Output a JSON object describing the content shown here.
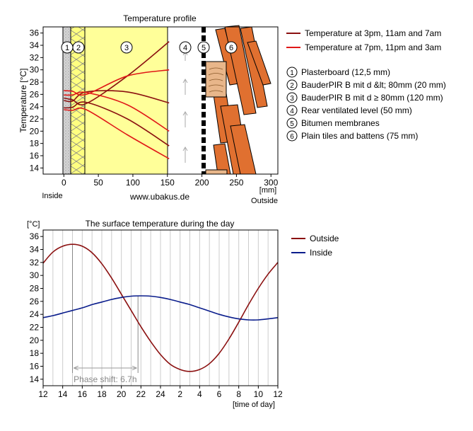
{
  "chart_data": [
    {
      "type": "line",
      "title": "Temperature profile",
      "ylabel": "Temperature [°C]",
      "xlabel": "[mm]",
      "ylim": [
        13,
        37
      ],
      "xlim": [
        -30,
        310
      ],
      "x_ticks": [
        0,
        50,
        100,
        150,
        200,
        250,
        300
      ],
      "y_ticks": [
        14,
        16,
        18,
        20,
        22,
        24,
        26,
        28,
        30,
        32,
        34,
        36
      ],
      "left_label": "Inside",
      "right_label": "Outside",
      "credit": "www.ubakus.de",
      "layers": [
        {
          "number": "1",
          "name": "Plasterboard (12,5 mm)",
          "from": 0,
          "to": 12.5
        },
        {
          "number": "2",
          "name": "BauderPIR B mit d &lt; 80mm (20 mm)",
          "from": 12.5,
          "to": 32.5
        },
        {
          "number": "3",
          "name": "BauderPIR B mit d ≥ 80mm (120 mm)",
          "from": 32.5,
          "to": 152.5
        },
        {
          "number": "4",
          "name": "Rear ventilated level (50 mm)",
          "from": 152.5,
          "to": 202.5
        },
        {
          "number": "5",
          "name": "Bitumen membranes",
          "from": 202.5,
          "to": 206
        },
        {
          "number": "6",
          "name": "Plain tiles and battens (75 mm)",
          "from": 206,
          "to": 281
        }
      ],
      "series": [
        {
          "name": "Temperature at 3pm, 11am and 7am",
          "color": "#8b1010",
          "lines": [
            {
              "x": [
                0,
                12.5,
                32.5,
                92,
                152.5
              ],
              "y": [
                25.4,
                25.1,
                24.5,
                29.0,
                34.6
              ]
            },
            {
              "x": [
                0,
                12.5,
                32.5,
                92,
                152.5
              ],
              "y": [
                25.0,
                24.9,
                26.4,
                26.4,
                24.6
              ]
            },
            {
              "x": [
                0,
                12.5,
                32.5,
                92,
                152.5
              ],
              "y": [
                23.8,
                23.9,
                24.7,
                22.0,
                17.6
              ]
            }
          ]
        },
        {
          "name": "Temperature at 7pm, 11pm and 3am",
          "color": "#e01818",
          "lines": [
            {
              "x": [
                0,
                12.5,
                32.5,
                92,
                152.5
              ],
              "y": [
                26.6,
                26.5,
                26.0,
                29.0,
                30.0
              ]
            },
            {
              "x": [
                0,
                12.5,
                32.5,
                92,
                152.5
              ],
              "y": [
                25.9,
                25.9,
                26.3,
                24.3,
                20.0
              ]
            },
            {
              "x": [
                0,
                12.5,
                32.5,
                92,
                152.5
              ],
              "y": [
                23.5,
                23.4,
                23.5,
                19.4,
                15.5
              ]
            }
          ]
        }
      ]
    },
    {
      "type": "line",
      "title": "The surface temperature during the day",
      "ylabel": "[°C]",
      "xlabel": "[time of day]",
      "ylim": [
        13,
        37
      ],
      "x_ticks": [
        "12",
        "14",
        "16",
        "18",
        "20",
        "22",
        "24",
        "2",
        "4",
        "6",
        "8",
        "10",
        "12"
      ],
      "y_ticks": [
        14,
        16,
        18,
        20,
        22,
        24,
        26,
        28,
        30,
        32,
        34,
        36
      ],
      "annotation": "Phase shift: 6.7h",
      "phase_shift_from_hour": 15.0,
      "phase_shift_to_hour": 21.7,
      "series": [
        {
          "name": "Outside",
          "color": "#8b1010",
          "x": [
            12,
            13,
            14,
            15,
            16,
            17,
            18,
            19,
            20,
            21,
            22,
            23,
            24,
            25,
            26,
            27,
            28,
            29,
            30,
            31,
            32,
            33,
            34,
            35,
            36
          ],
          "y": [
            31.9,
            33.6,
            34.5,
            34.8,
            34.5,
            33.5,
            31.8,
            29.6,
            27.1,
            24.6,
            22.1,
            19.8,
            17.8,
            16.3,
            15.5,
            15.2,
            15.5,
            16.4,
            18.0,
            20.2,
            22.8,
            25.5,
            28.0,
            30.2,
            32.0
          ]
        },
        {
          "name": "Inside",
          "color": "#0a1d8c",
          "x": [
            12,
            13,
            14,
            15,
            16,
            17,
            18,
            19,
            20,
            21,
            22,
            23,
            24,
            25,
            26,
            27,
            28,
            29,
            30,
            31,
            32,
            33,
            34,
            35,
            36
          ],
          "y": [
            23.5,
            23.8,
            24.2,
            24.6,
            25.0,
            25.5,
            25.9,
            26.3,
            26.6,
            26.8,
            26.85,
            26.8,
            26.6,
            26.3,
            25.9,
            25.5,
            25.0,
            24.5,
            24.0,
            23.6,
            23.3,
            23.15,
            23.15,
            23.3,
            23.5
          ]
        }
      ]
    }
  ]
}
